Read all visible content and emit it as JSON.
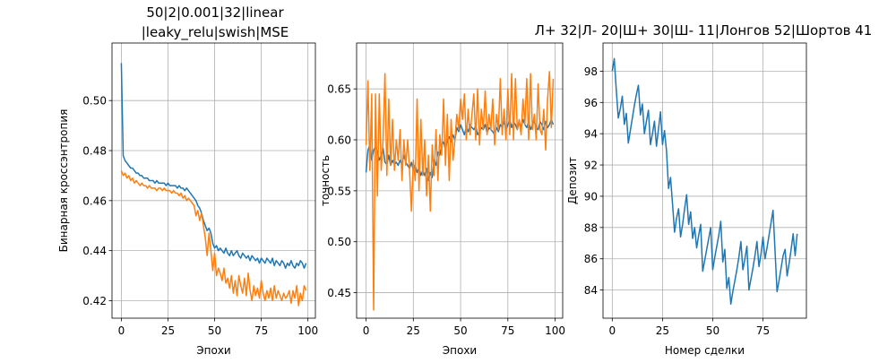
{
  "chart_data": [
    {
      "type": "line",
      "title_lines": [
        "50|2|0.001|32|linear",
        "|leaky_relu|swish|MSE"
      ],
      "xlabel": "Эпохи",
      "ylabel": "Бинарная кроссэнтропия",
      "xlim": [
        -5,
        104
      ],
      "ylim": [
        0.413,
        0.523
      ],
      "xticks": [
        0,
        25,
        50,
        75,
        100
      ],
      "yticks": [
        0.42,
        0.44,
        0.46,
        0.48,
        0.5
      ],
      "ytick_labels": [
        "0.42",
        "0.44",
        "0.46",
        "0.48",
        "0.50"
      ],
      "grid": true,
      "series": [
        {
          "color": "#1f77b4",
          "x": [
            0,
            1,
            2,
            3,
            4,
            5,
            6,
            7,
            8,
            9,
            10,
            11,
            12,
            13,
            14,
            15,
            16,
            17,
            18,
            19,
            20,
            21,
            22,
            23,
            24,
            25,
            26,
            27,
            28,
            29,
            30,
            31,
            32,
            33,
            34,
            35,
            36,
            37,
            38,
            39,
            40,
            41,
            42,
            43,
            44,
            45,
            46,
            47,
            48,
            49,
            50,
            51,
            52,
            53,
            54,
            55,
            56,
            57,
            58,
            59,
            60,
            61,
            62,
            63,
            64,
            65,
            66,
            67,
            68,
            69,
            70,
            71,
            72,
            73,
            74,
            75,
            76,
            77,
            78,
            79,
            80,
            81,
            82,
            83,
            84,
            85,
            86,
            87,
            88,
            89,
            90,
            91,
            92,
            93,
            94,
            95,
            96,
            97,
            98,
            99
          ],
          "y": [
            0.515,
            0.478,
            0.476,
            0.475,
            0.474,
            0.473,
            0.473,
            0.472,
            0.471,
            0.471,
            0.47,
            0.47,
            0.469,
            0.469,
            0.469,
            0.468,
            0.468,
            0.468,
            0.467,
            0.468,
            0.467,
            0.467,
            0.467,
            0.467,
            0.466,
            0.467,
            0.466,
            0.466,
            0.466,
            0.466,
            0.465,
            0.466,
            0.465,
            0.465,
            0.464,
            0.465,
            0.464,
            0.463,
            0.462,
            0.461,
            0.46,
            0.458,
            0.457,
            0.455,
            0.452,
            0.45,
            0.448,
            0.449,
            0.447,
            0.443,
            0.441,
            0.442,
            0.44,
            0.441,
            0.44,
            0.439,
            0.441,
            0.439,
            0.438,
            0.44,
            0.438,
            0.439,
            0.44,
            0.438,
            0.437,
            0.439,
            0.438,
            0.437,
            0.438,
            0.436,
            0.438,
            0.437,
            0.436,
            0.437,
            0.435,
            0.437,
            0.436,
            0.435,
            0.437,
            0.436,
            0.435,
            0.437,
            0.434,
            0.436,
            0.435,
            0.434,
            0.436,
            0.435,
            0.433,
            0.435,
            0.434,
            0.436,
            0.434,
            0.433,
            0.435,
            0.434,
            0.436,
            0.435,
            0.433,
            0.435
          ]
        },
        {
          "color": "#ff7f0e",
          "x": [
            0,
            1,
            2,
            3,
            4,
            5,
            6,
            7,
            8,
            9,
            10,
            11,
            12,
            13,
            14,
            15,
            16,
            17,
            18,
            19,
            20,
            21,
            22,
            23,
            24,
            25,
            26,
            27,
            28,
            29,
            30,
            31,
            32,
            33,
            34,
            35,
            36,
            37,
            38,
            39,
            40,
            41,
            42,
            43,
            44,
            45,
            46,
            47,
            48,
            49,
            50,
            51,
            52,
            53,
            54,
            55,
            56,
            57,
            58,
            59,
            60,
            61,
            62,
            63,
            64,
            65,
            66,
            67,
            68,
            69,
            70,
            71,
            72,
            73,
            74,
            75,
            76,
            77,
            78,
            79,
            80,
            81,
            82,
            83,
            84,
            85,
            86,
            87,
            88,
            89,
            90,
            91,
            92,
            93,
            94,
            95,
            96,
            97,
            98,
            99
          ],
          "y": [
            0.472,
            0.47,
            0.471,
            0.469,
            0.47,
            0.468,
            0.469,
            0.467,
            0.468,
            0.467,
            0.466,
            0.467,
            0.466,
            0.466,
            0.465,
            0.466,
            0.465,
            0.465,
            0.465,
            0.464,
            0.465,
            0.465,
            0.464,
            0.465,
            0.464,
            0.464,
            0.464,
            0.463,
            0.464,
            0.463,
            0.463,
            0.462,
            0.463,
            0.461,
            0.462,
            0.46,
            0.461,
            0.46,
            0.459,
            0.458,
            0.454,
            0.456,
            0.452,
            0.455,
            0.45,
            0.445,
            0.438,
            0.447,
            0.44,
            0.432,
            0.439,
            0.43,
            0.433,
            0.431,
            0.428,
            0.433,
            0.427,
            0.429,
            0.425,
            0.43,
            0.423,
            0.428,
            0.422,
            0.43,
            0.426,
            0.423,
            0.429,
            0.422,
            0.431,
            0.424,
            0.42,
            0.426,
            0.422,
            0.425,
            0.421,
            0.428,
            0.423,
            0.42,
            0.424,
            0.421,
            0.425,
            0.42,
            0.426,
            0.421,
            0.424,
            0.422,
            0.42,
            0.423,
            0.421,
            0.422,
            0.424,
            0.419,
            0.424,
            0.421,
            0.426,
            0.418,
            0.423,
            0.42,
            0.426,
            0.424
          ]
        }
      ]
    },
    {
      "type": "line",
      "title_lines": [],
      "xlabel": "Эпохи",
      "ylabel": "точность",
      "xlim": [
        -5,
        104
      ],
      "ylim": [
        0.425,
        0.695
      ],
      "xticks": [
        0,
        25,
        50,
        75,
        100
      ],
      "yticks": [
        0.45,
        0.5,
        0.55,
        0.6,
        0.65
      ],
      "ytick_labels": [
        "0.45",
        "0.50",
        "0.55",
        "0.60",
        "0.65"
      ],
      "grid": true,
      "series": [
        {
          "color": "#1f77b4",
          "x": [
            0,
            1,
            2,
            3,
            4,
            5,
            6,
            7,
            8,
            9,
            10,
            11,
            12,
            13,
            14,
            15,
            16,
            17,
            18,
            19,
            20,
            21,
            22,
            23,
            24,
            25,
            26,
            27,
            28,
            29,
            30,
            31,
            32,
            33,
            34,
            35,
            36,
            37,
            38,
            39,
            40,
            41,
            42,
            43,
            44,
            45,
            46,
            47,
            48,
            49,
            50,
            51,
            52,
            53,
            54,
            55,
            56,
            57,
            58,
            59,
            60,
            61,
            62,
            63,
            64,
            65,
            66,
            67,
            68,
            69,
            70,
            71,
            72,
            73,
            74,
            75,
            76,
            77,
            78,
            79,
            80,
            81,
            82,
            83,
            84,
            85,
            86,
            87,
            88,
            89,
            90,
            91,
            92,
            93,
            94,
            95,
            96,
            97,
            98,
            99
          ],
          "y": [
            0.568,
            0.59,
            0.595,
            0.58,
            0.59,
            0.593,
            0.588,
            0.58,
            0.585,
            0.592,
            0.578,
            0.576,
            0.585,
            0.575,
            0.58,
            0.576,
            0.578,
            0.575,
            0.58,
            0.575,
            0.585,
            0.578,
            0.575,
            0.572,
            0.578,
            0.57,
            0.575,
            0.568,
            0.573,
            0.565,
            0.57,
            0.565,
            0.572,
            0.56,
            0.568,
            0.563,
            0.58,
            0.575,
            0.588,
            0.585,
            0.595,
            0.598,
            0.59,
            0.6,
            0.603,
            0.598,
            0.605,
            0.6,
            0.612,
            0.608,
            0.615,
            0.61,
            0.605,
            0.612,
            0.608,
            0.615,
            0.612,
            0.61,
            0.614,
            0.605,
            0.608,
            0.612,
            0.61,
            0.615,
            0.607,
            0.612,
            0.61,
            0.608,
            0.605,
            0.612,
            0.608,
            0.615,
            0.612,
            0.618,
            0.61,
            0.615,
            0.62,
            0.612,
            0.618,
            0.615,
            0.61,
            0.618,
            0.612,
            0.62,
            0.615,
            0.612,
            0.618,
            0.61,
            0.615,
            0.618,
            0.612,
            0.61,
            0.618,
            0.615,
            0.61,
            0.618,
            0.612,
            0.615,
            0.62,
            0.615
          ]
        },
        {
          "color": "#ff7f0e",
          "x": [
            0,
            1,
            2,
            3,
            4,
            5,
            6,
            7,
            8,
            9,
            10,
            11,
            12,
            13,
            14,
            15,
            16,
            17,
            18,
            19,
            20,
            21,
            22,
            23,
            24,
            25,
            26,
            27,
            28,
            29,
            30,
            31,
            32,
            33,
            34,
            35,
            36,
            37,
            38,
            39,
            40,
            41,
            42,
            43,
            44,
            45,
            46,
            47,
            48,
            49,
            50,
            51,
            52,
            53,
            54,
            55,
            56,
            57,
            58,
            59,
            60,
            61,
            62,
            63,
            64,
            65,
            66,
            67,
            68,
            69,
            70,
            71,
            72,
            73,
            74,
            75,
            76,
            77,
            78,
            79,
            80,
            81,
            82,
            83,
            84,
            85,
            86,
            87,
            88,
            89,
            90,
            91,
            92,
            93,
            94,
            95,
            96,
            97,
            98,
            99
          ],
          "y": [
            0.595,
            0.658,
            0.57,
            0.645,
            0.433,
            0.645,
            0.545,
            0.645,
            0.57,
            0.6,
            0.665,
            0.565,
            0.64,
            0.575,
            0.62,
            0.57,
            0.6,
            0.58,
            0.61,
            0.56,
            0.6,
            0.575,
            0.6,
            0.57,
            0.53,
            0.58,
            0.56,
            0.64,
            0.55,
            0.62,
            0.565,
            0.6,
            0.545,
            0.585,
            0.53,
            0.595,
            0.565,
            0.61,
            0.56,
            0.605,
            0.585,
            0.64,
            0.575,
            0.625,
            0.56,
            0.62,
            0.58,
            0.6,
            0.625,
            0.61,
            0.64,
            0.62,
            0.645,
            0.6,
            0.63,
            0.605,
            0.625,
            0.645,
            0.6,
            0.65,
            0.595,
            0.63,
            0.61,
            0.648,
            0.605,
            0.625,
            0.61,
            0.64,
            0.595,
            0.625,
            0.61,
            0.66,
            0.605,
            0.63,
            0.6,
            0.65,
            0.605,
            0.665,
            0.6,
            0.66,
            0.61,
            0.62,
            0.605,
            0.64,
            0.615,
            0.66,
            0.6,
            0.665,
            0.61,
            0.625,
            0.6,
            0.655,
            0.61,
            0.605,
            0.63,
            0.59,
            0.64,
            0.667,
            0.612,
            0.66
          ]
        }
      ]
    },
    {
      "type": "line",
      "title_lines": [
        "Л+ 32|Л- 20|Ш+ 30|Ш- 11|Лонгов 52|Шортов 41"
      ],
      "xlabel": "Номер сделки",
      "ylabel": "Депозит",
      "xlim": [
        -4.6,
        96.6
      ],
      "ylim": [
        82.2,
        99.8
      ],
      "xticks": [
        0,
        25,
        50,
        75
      ],
      "yticks": [
        84,
        86,
        88,
        90,
        92,
        94,
        96,
        98
      ],
      "ytick_labels": [
        "84",
        "86",
        "88",
        "90",
        "92",
        "94",
        "96",
        "98"
      ],
      "grid": true,
      "series": [
        {
          "color": "#1f77b4",
          "x": [
            0,
            1,
            2,
            3,
            4,
            5,
            6,
            7,
            8,
            9,
            10,
            11,
            12,
            13,
            14,
            15,
            16,
            17,
            18,
            19,
            20,
            21,
            22,
            23,
            24,
            25,
            26,
            27,
            28,
            29,
            30,
            31,
            32,
            33,
            34,
            35,
            36,
            37,
            38,
            39,
            40,
            41,
            42,
            43,
            44,
            45,
            46,
            47,
            48,
            49,
            50,
            51,
            52,
            53,
            54,
            55,
            56,
            57,
            58,
            59,
            60,
            61,
            62,
            63,
            64,
            65,
            66,
            67,
            68,
            69,
            70,
            71,
            72,
            73,
            74,
            75,
            76,
            77,
            78,
            79,
            80,
            81,
            82,
            83,
            84,
            85,
            86,
            87,
            88,
            89,
            90,
            91,
            92
          ],
          "y": [
            98.0,
            98.8,
            96.8,
            95.0,
            95.6,
            96.4,
            94.6,
            95.3,
            93.4,
            94.2,
            95.0,
            95.8,
            96.5,
            97.1,
            95.2,
            95.9,
            94.0,
            94.8,
            95.5,
            93.3,
            94.0,
            94.8,
            93.2,
            94.3,
            95.4,
            93.3,
            94.2,
            92.9,
            90.5,
            91.2,
            89.5,
            87.7,
            88.6,
            89.2,
            87.4,
            88.2,
            89.2,
            90.1,
            88.2,
            89.0,
            87.3,
            88.0,
            86.7,
            87.5,
            88.2,
            85.2,
            85.9,
            86.6,
            87.3,
            88.0,
            85.3,
            86.1,
            86.8,
            87.5,
            88.4,
            85.8,
            86.6,
            84.1,
            84.8,
            83.1,
            83.9,
            84.6,
            85.3,
            86.1,
            87.1,
            85.3,
            86.0,
            86.8,
            84.0,
            84.7,
            85.4,
            86.2,
            87.1,
            85.5,
            86.3,
            87.4,
            86.0,
            86.7,
            87.5,
            88.3,
            89.1,
            86.5,
            83.9,
            84.6,
            85.4,
            86.2,
            86.6,
            84.9,
            85.7,
            86.6,
            87.6,
            86.2,
            87.6
          ]
        }
      ]
    }
  ]
}
